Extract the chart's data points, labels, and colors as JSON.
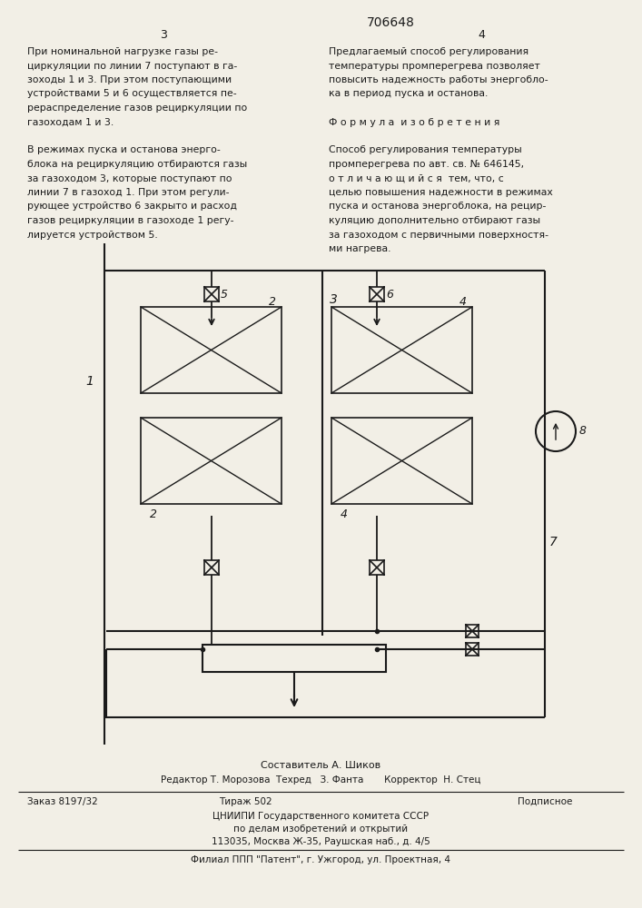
{
  "bg_color": "#f2efe6",
  "line_color": "#1a1a1a",
  "text_color": "#1a1a1a",
  "page_header_number": "706648",
  "page_left": "3",
  "page_right": "4",
  "text_left": [
    "При номинальной нагрузке газы ре-",
    "циркуляции по линии 7 поступают в га-",
    "зоходы 1 и 3. При этом поступающими",
    "устройствами 5 и 6 осуществляется пе-",
    "рераспределение газов рециркуляции по",
    "газоходам 1 и 3.",
    "",
    "В режимах пуска и останова энерго-",
    "блока на рециркуляцию отбираются газы",
    "за газоходом 3, которые поступают по",
    "линии 7 в газоход 1. При этом регули-",
    "рующее устройство 6 закрыто и расход",
    "газов рециркуляции в газоходе 1 регу-",
    "лируется устройством 5."
  ],
  "text_right": [
    "Предлагаемый способ регулирования",
    "температуры промперегрева позволяет",
    "повысить надежность работы энергобло-",
    "ка в период пуска и останова.",
    "",
    "Ф о р м у л а  и з о б р е т е н и я",
    "",
    "Способ регулирования температуры",
    "промперегрева по авт. св. № 646145,",
    "о т л и ч а ю щ и й с я  тем, что, с",
    "целью повышения надежности в режимах",
    "пуска и останова энергоблока, на рецир-",
    "куляцию дополнительно отбирают газы",
    "за газоходом с первичными поверхностя-",
    "ми нагрева."
  ],
  "footer_lines": [
    "Составитель А. Шиков",
    "Редактор Т. Морозова  Техред   З. Фанта       Корректор  Н. Стец",
    "Заказ 8197/32",
    "Тираж 502",
    "Подписное",
    "ЦНИИПИ Государственного комитета СССР",
    "по делам изобретений и открытий",
    "113035, Москва Ж-35, Раушская наб., д. 4/5",
    "Филиал ППП \"Патент\", г. Ужгород, ул. Проектная, 4"
  ]
}
